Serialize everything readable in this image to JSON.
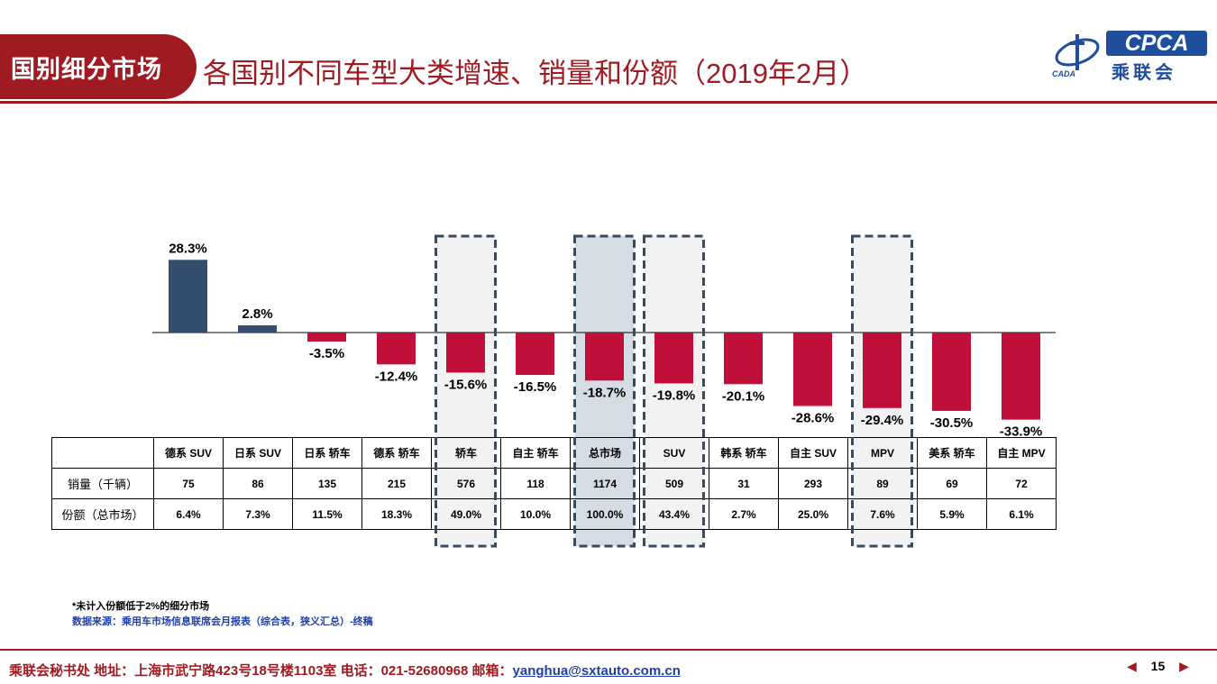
{
  "header": {
    "tag": "国别细分市场",
    "title": "各国别不同车型大类增速、销量和份额（2019年2月）"
  },
  "logo": {
    "brand": "CPCA",
    "name_cn": "乘联会",
    "small": "CADA"
  },
  "chart_data": {
    "type": "bar",
    "categories": [
      "德系 SUV",
      "日系 SUV",
      "日系 轿车",
      "德系 轿车",
      "轿车",
      "自主 轿车",
      "总市场",
      "SUV",
      "韩系 轿车",
      "自主 SUV",
      "MPV",
      "美系 轿车",
      "自主 MPV"
    ],
    "values": [
      28.3,
      2.8,
      -3.5,
      -12.4,
      -15.6,
      -16.5,
      -18.7,
      -19.8,
      -20.1,
      -28.6,
      -29.4,
      -30.5,
      -33.9
    ],
    "value_labels": [
      "28.3%",
      "2.8%",
      "-3.5%",
      "-12.4%",
      "-15.6%",
      "-16.5%",
      "-18.7%",
      "-19.8%",
      "-20.1%",
      "-28.6%",
      "-29.4%",
      "-30.5%",
      "-33.9%"
    ],
    "highlighted": [
      "轿车",
      "总市场",
      "SUV",
      "MPV"
    ],
    "grid": false,
    "colors": {
      "positive": "#334d6e",
      "negative": "#c0103a",
      "highlight_box": "#f2f2f2",
      "highlight_total": "#d6dce4",
      "dash": "#3b4a5c"
    }
  },
  "table": {
    "header_row": [
      "德系 SUV",
      "日系 SUV",
      "日系 轿车",
      "德系 轿车",
      "轿车",
      "自主 轿车",
      "总市场",
      "SUV",
      "韩系 轿车",
      "自主 SUV",
      "MPV",
      "美系 轿车",
      "自主 MPV"
    ],
    "rows": [
      {
        "label": "销量（千辆）",
        "cells": [
          "75",
          "86",
          "135",
          "215",
          "576",
          "118",
          "1174",
          "509",
          "31",
          "293",
          "89",
          "69",
          "72"
        ]
      },
      {
        "label": "份额（总市场）",
        "cells": [
          "6.4%",
          "7.3%",
          "11.5%",
          "18.3%",
          "49.0%",
          "10.0%",
          "100.0%",
          "43.4%",
          "2.7%",
          "25.0%",
          "7.6%",
          "5.9%",
          "6.1%"
        ]
      }
    ]
  },
  "notes": {
    "note1": "*未计入份额低于2%的细分市场",
    "note2": "数据来源：乘用车市场信息联席会月报表（综合表，狭义汇总）-终稿"
  },
  "footer": {
    "text": "乘联会秘书处   地址：上海市武宁路423号18号楼1103室  电话：021-52680968   邮箱：",
    "email": "yanghua@sxtauto.com.cn",
    "page_number": "15",
    "prev_icon": "prev-triangle-icon",
    "next_icon": "next-triangle-icon"
  }
}
